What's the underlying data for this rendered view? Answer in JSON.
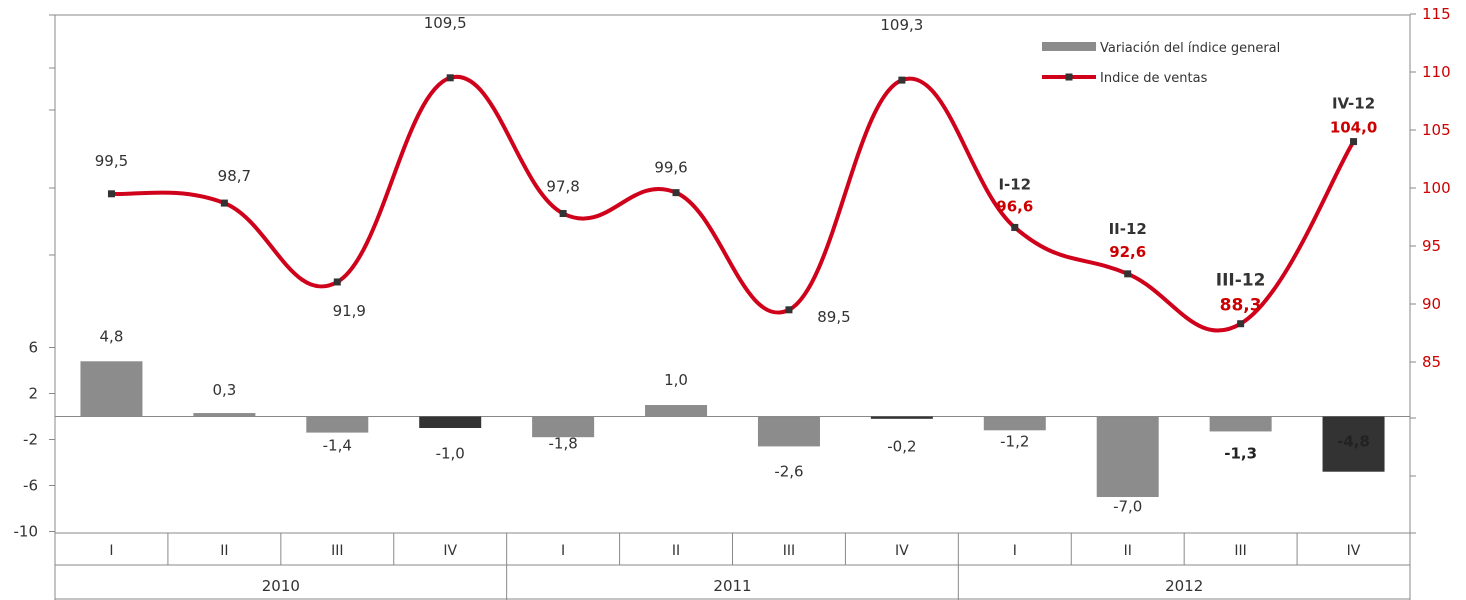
{
  "chart_data": {
    "type": "bar+line",
    "quarters": [
      "I",
      "II",
      "III",
      "IV",
      "I",
      "II",
      "III",
      "IV",
      "I",
      "II",
      "III",
      "IV"
    ],
    "years": [
      "2010",
      "2011",
      "2012"
    ],
    "series": [
      {
        "name": "Variación del índice general",
        "type": "bar",
        "axis": "left",
        "values": [
          4.8,
          0.3,
          -1.4,
          -1.0,
          -1.8,
          1.0,
          -2.6,
          -0.2,
          -1.2,
          -7.0,
          -1.3,
          -4.8
        ],
        "labels": [
          "4,8",
          "0,3",
          "-1,4",
          "-1,0",
          "-1,8",
          "1,0",
          "-2,6",
          "-0,2",
          "-1,2",
          "-7,0",
          "-1,3",
          "-4,8"
        ],
        "colors": [
          "#8c8c8c",
          "#8c8c8c",
          "#8c8c8c",
          "#333333",
          "#8c8c8c",
          "#8c8c8c",
          "#8c8c8c",
          "#333333",
          "#8c8c8c",
          "#8c8c8c",
          "#8c8c8c",
          "#333333"
        ]
      },
      {
        "name": "Indice de ventas",
        "type": "line",
        "axis": "right",
        "values": [
          99.5,
          98.7,
          91.9,
          109.5,
          97.8,
          99.6,
          89.5,
          109.3,
          96.6,
          92.6,
          88.3,
          104.0
        ],
        "labels": [
          "99,5",
          "98,7",
          "91,9",
          "109,5",
          "97,8",
          "99,6",
          "89,5",
          "109,3",
          "96,6",
          "92,6",
          "88,3",
          "104,0"
        ],
        "color": "#d0021b"
      }
    ],
    "annotations": [
      {
        "index": 8,
        "quarter": "I-12",
        "value": "96,6"
      },
      {
        "index": 9,
        "quarter": "II-12",
        "value": "92,6"
      },
      {
        "index": 10,
        "quarter": "III-12",
        "value": "88,3"
      },
      {
        "index": 11,
        "quarter": "IV-12",
        "value": "104,0"
      }
    ],
    "left_axis": {
      "ticks": [
        "6",
        "2",
        "-2",
        "-6",
        "-10"
      ],
      "tick_values": [
        6,
        2,
        -2,
        -6,
        -10
      ],
      "ylim": [
        -10,
        10
      ]
    },
    "right_axis": {
      "ticks": [
        "85",
        "90",
        "95",
        "100",
        "105",
        "110",
        "115"
      ],
      "tick_values": [
        85,
        90,
        95,
        100,
        105,
        110,
        115
      ],
      "ylim": [
        75,
        115
      ]
    },
    "legend_position": "top-right",
    "grid": false
  }
}
